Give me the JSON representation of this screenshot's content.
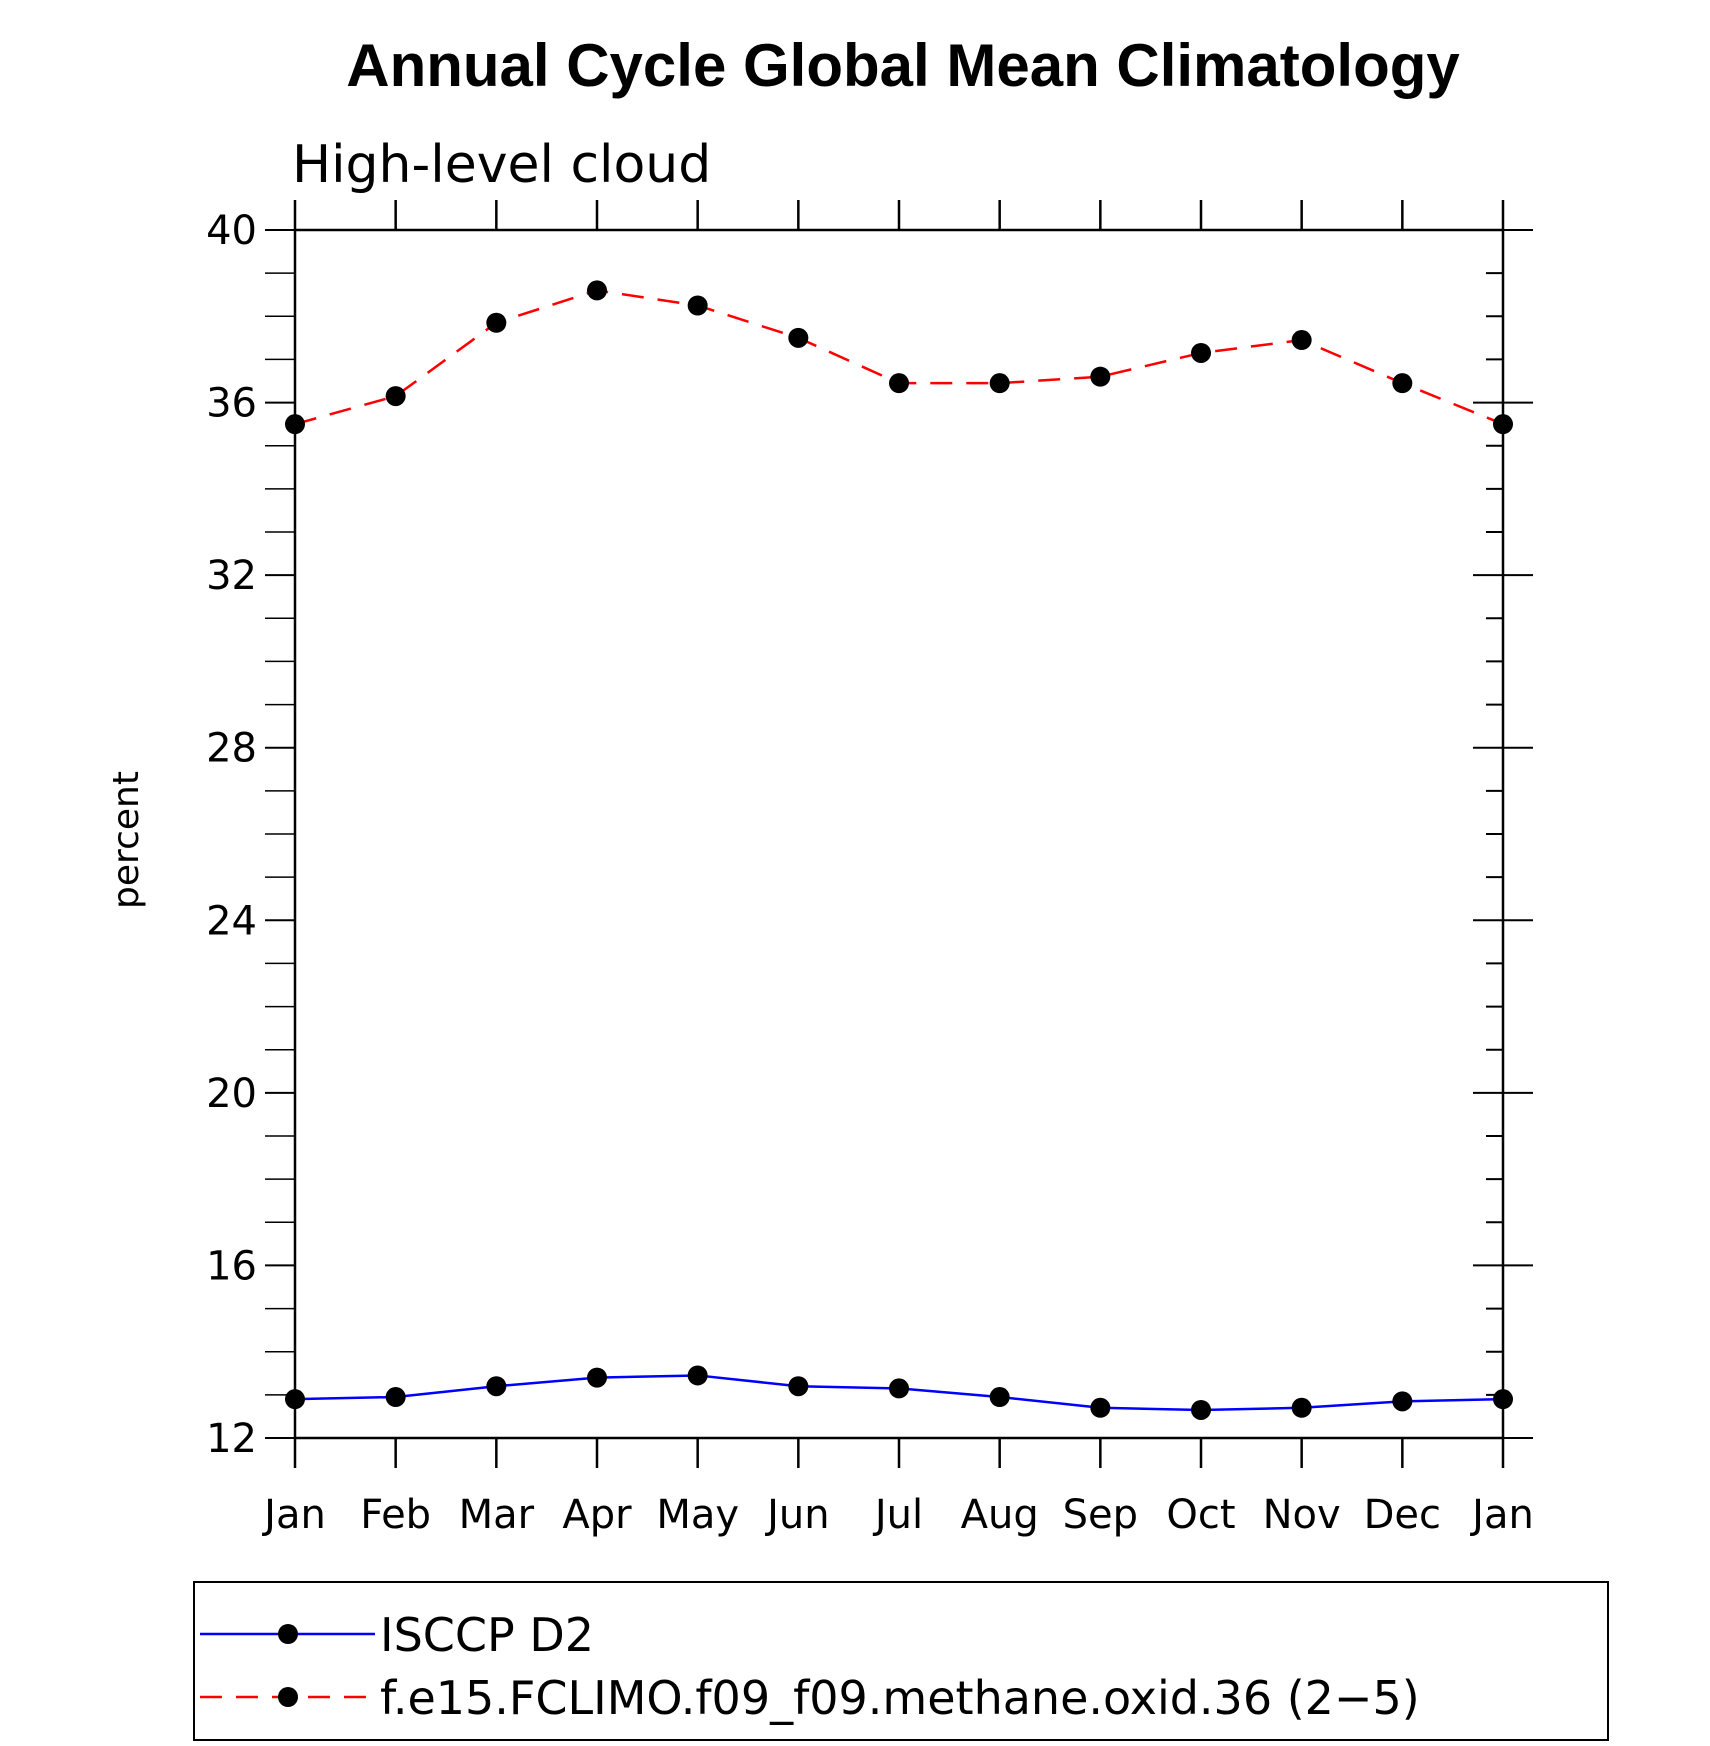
{
  "chart_data": {
    "type": "line",
    "title": "Annual Cycle Global Mean Climatology",
    "subtitle": "High-level cloud",
    "xlabel": "",
    "ylabel": "percent",
    "categories": [
      "Jan",
      "Feb",
      "Mar",
      "Apr",
      "May",
      "Jun",
      "Jul",
      "Aug",
      "Sep",
      "Oct",
      "Nov",
      "Dec",
      "Jan"
    ],
    "ylim": [
      12,
      40
    ],
    "yticks": [
      12,
      16,
      20,
      24,
      28,
      32,
      36,
      40
    ],
    "y_minor_step": 1,
    "grid": false,
    "legend_position": "bottom",
    "series": [
      {
        "name": "ISCCP D2",
        "color": "#0000ff",
        "line_style": "solid",
        "marker": "filled-circle",
        "values": [
          12.9,
          12.95,
          13.2,
          13.4,
          13.45,
          13.2,
          13.15,
          12.95,
          12.7,
          12.65,
          12.7,
          12.85,
          12.9
        ]
      },
      {
        "name": "f.e15.FCLIMO.f09_f09.methane.oxid.36 (2−5)",
        "color": "#ff0000",
        "line_style": "dashed",
        "marker": "filled-circle",
        "values": [
          35.5,
          36.15,
          37.85,
          38.6,
          38.25,
          37.5,
          36.45,
          36.45,
          36.6,
          37.15,
          37.45,
          36.45,
          35.5
        ]
      }
    ]
  }
}
